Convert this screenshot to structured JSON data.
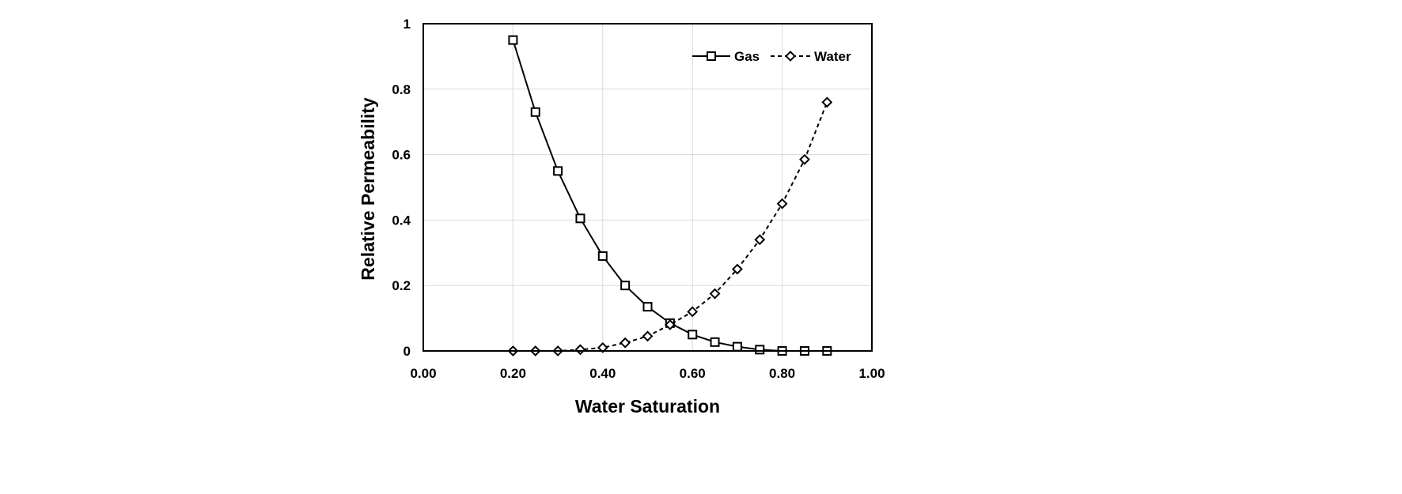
{
  "chart_data": {
    "type": "line",
    "xlabel": "Water Saturation",
    "ylabel": "Relative Permeability",
    "xlim": [
      0,
      1
    ],
    "ylim": [
      0,
      1
    ],
    "x_ticks": [
      "0.00",
      "0.20",
      "0.40",
      "0.60",
      "0.80",
      "1.00"
    ],
    "y_ticks": [
      "0",
      "0.2",
      "0.4",
      "0.6",
      "0.8",
      "1"
    ],
    "grid": true,
    "legend_position": "top-right",
    "series": [
      {
        "name": "Gas",
        "line_style": "solid",
        "marker": "square",
        "x": [
          0.2,
          0.25,
          0.3,
          0.35,
          0.4,
          0.45,
          0.5,
          0.55,
          0.6,
          0.65,
          0.7,
          0.75,
          0.8,
          0.85,
          0.9
        ],
        "y": [
          0.95,
          0.73,
          0.55,
          0.405,
          0.29,
          0.2,
          0.135,
          0.085,
          0.05,
          0.027,
          0.013,
          0.004,
          0.0,
          0.0,
          0.0
        ]
      },
      {
        "name": "Water",
        "line_style": "dashed",
        "marker": "diamond",
        "x": [
          0.2,
          0.25,
          0.3,
          0.35,
          0.4,
          0.45,
          0.5,
          0.55,
          0.6,
          0.65,
          0.7,
          0.75,
          0.8,
          0.85,
          0.9
        ],
        "y": [
          0.0,
          0.0,
          0.0,
          0.004,
          0.01,
          0.025,
          0.045,
          0.08,
          0.12,
          0.175,
          0.25,
          0.34,
          0.45,
          0.585,
          0.76
        ]
      }
    ]
  }
}
